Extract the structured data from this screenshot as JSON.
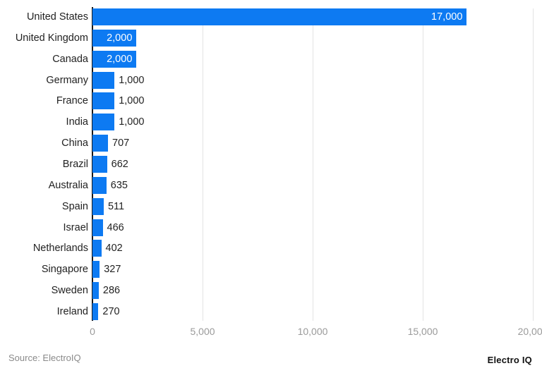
{
  "chart_data": {
    "type": "bar",
    "orientation": "horizontal",
    "title": "",
    "xlabel": "",
    "ylabel": "",
    "categories": [
      "United States",
      "United Kingdom",
      "Canada",
      "Germany",
      "France",
      "India",
      "China",
      "Brazil",
      "Australia",
      "Spain",
      "Israel",
      "Netherlands",
      "Singapore",
      "Sweden",
      "Ireland"
    ],
    "values": [
      17000,
      2000,
      2000,
      1000,
      1000,
      1000,
      707,
      662,
      635,
      511,
      466,
      402,
      327,
      286,
      270
    ],
    "value_labels": [
      "17,000",
      "2,000",
      "2,000",
      "1,000",
      "1,000",
      "1,000",
      "707",
      "662",
      "635",
      "511",
      "466",
      "402",
      "327",
      "286",
      "270"
    ],
    "xlim": [
      0,
      20000
    ],
    "x_ticks": [
      0,
      5000,
      10000,
      15000,
      20000
    ],
    "x_tick_labels": [
      "0",
      "5,000",
      "10,000",
      "15,000",
      "20,000"
    ],
    "grid": "vertical",
    "bar_color": "#0d7af2",
    "legend": null
  },
  "footer": {
    "source": "Source: ElectroIQ",
    "brand": "Electro IQ"
  }
}
